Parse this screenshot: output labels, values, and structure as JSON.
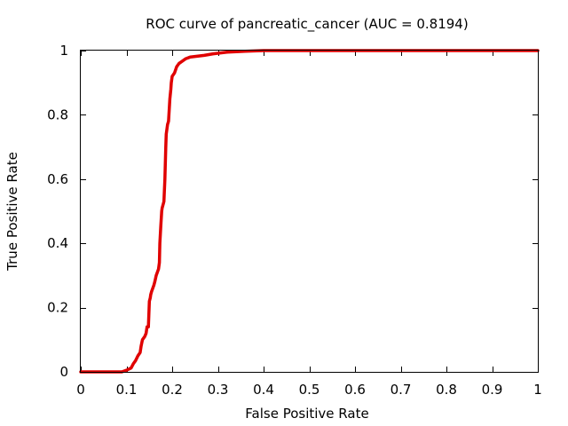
{
  "chart_data": {
    "type": "line",
    "title": "ROC curve of pancreatic_cancer (AUC = 0.8194)",
    "xlabel": "False Positive Rate",
    "ylabel": "True Positive Rate",
    "xlim": [
      0,
      1
    ],
    "ylim": [
      0,
      1
    ],
    "grid": false,
    "legend": "none",
    "x_ticks": [
      "0",
      "0.1",
      "0.2",
      "0.3",
      "0.4",
      "0.5",
      "0.6",
      "0.7",
      "0.8",
      "0.9",
      "1"
    ],
    "x_tick_values": [
      0,
      0.1,
      0.2,
      0.3,
      0.4,
      0.5,
      0.6,
      0.7,
      0.8,
      0.9,
      1
    ],
    "y_ticks": [
      "0",
      "0.2",
      "0.4",
      "0.6",
      "0.8",
      "1"
    ],
    "y_tick_values": [
      0,
      0.2,
      0.4,
      0.6,
      0.8,
      1
    ],
    "series": [
      {
        "color": "#e00000",
        "x": [
          0,
          0.09,
          0.1,
          0.11,
          0.115,
          0.12,
          0.125,
          0.13,
          0.132,
          0.135,
          0.14,
          0.143,
          0.145,
          0.148,
          0.15,
          0.152,
          0.153,
          0.155,
          0.16,
          0.162,
          0.165,
          0.17,
          0.172,
          0.173,
          0.175,
          0.177,
          0.178,
          0.18,
          0.182,
          0.184,
          0.186,
          0.187,
          0.188,
          0.19,
          0.192,
          0.195,
          0.197,
          0.198,
          0.2,
          0.205,
          0.21,
          0.215,
          0.22,
          0.23,
          0.24,
          0.27,
          0.29,
          0.32,
          0.36,
          0.4,
          0.6,
          0.8,
          1.0
        ],
        "y": [
          0,
          0,
          0.005,
          0.012,
          0.025,
          0.035,
          0.05,
          0.06,
          0.08,
          0.1,
          0.11,
          0.12,
          0.14,
          0.14,
          0.22,
          0.23,
          0.24,
          0.25,
          0.27,
          0.28,
          0.3,
          0.32,
          0.34,
          0.4,
          0.45,
          0.5,
          0.51,
          0.52,
          0.53,
          0.6,
          0.7,
          0.74,
          0.75,
          0.77,
          0.78,
          0.85,
          0.88,
          0.9,
          0.92,
          0.93,
          0.95,
          0.96,
          0.965,
          0.975,
          0.98,
          0.985,
          0.99,
          0.995,
          0.998,
          1.0,
          1.0,
          1.0,
          1.0
        ]
      }
    ]
  }
}
